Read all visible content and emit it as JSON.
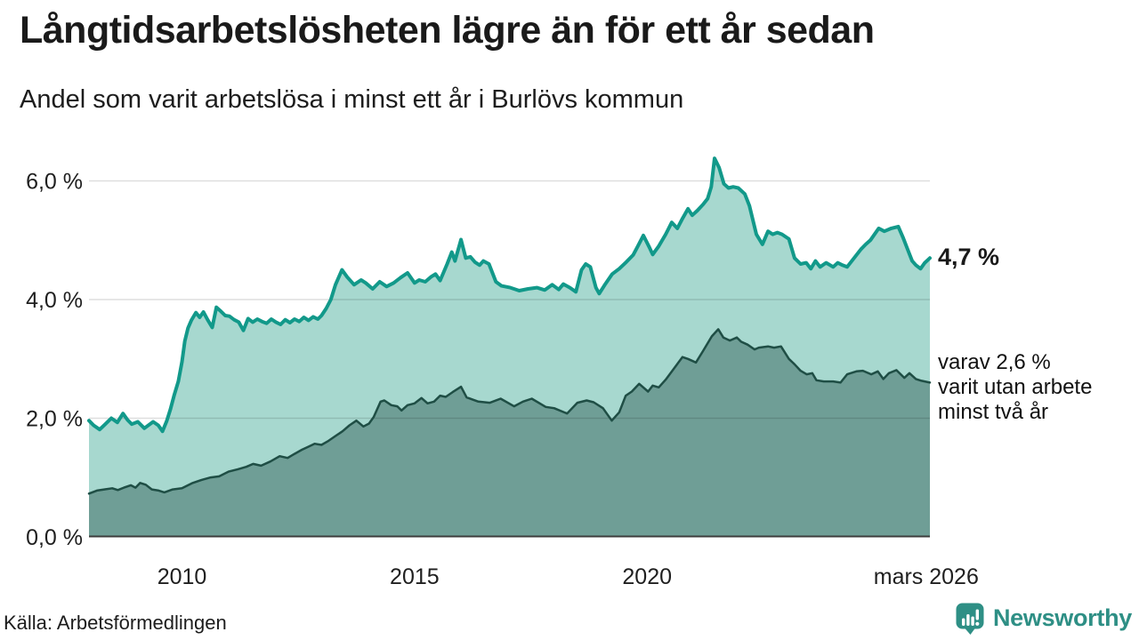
{
  "header": {
    "title": "Långtidsarbetslösheten lägre än för ett år sedan",
    "subtitle": "Andel som varit arbetslösa i minst ett år i Burlövs kommun"
  },
  "chart_data": {
    "type": "area",
    "title": "Långtidsarbetslösheten lägre än för ett år sedan",
    "subtitle": "Andel som varit arbetslösa i minst ett år i Burlövs kommun",
    "x_unit": "year",
    "x_range": [
      2008.0,
      2026.08
    ],
    "ylim": [
      0,
      6.6
    ],
    "grid": true,
    "grid_color": "rgba(0,0,0,0.13)",
    "axis_color": "#3d3d3d",
    "y_ticks": [
      {
        "value": 0,
        "label": "0,0 %"
      },
      {
        "value": 2,
        "label": "2,0 %"
      },
      {
        "value": 4,
        "label": "4,0 %"
      },
      {
        "value": 6,
        "label": "6,0 %"
      }
    ],
    "x_ticks": [
      {
        "year": 2010,
        "label": "2010"
      },
      {
        "year": 2015,
        "label": "2015"
      },
      {
        "year": 2020,
        "label": "2020"
      },
      {
        "year": 2026.0,
        "label": "mars 2026"
      }
    ],
    "series": [
      {
        "name": "Andel som varit arbetslösa i minst ett år",
        "line_color": "#12998A",
        "fill_color": "#A7D8CF",
        "line_width": 4,
        "end_value": "4,7 %",
        "points": [
          [
            2008.0,
            1.96
          ],
          [
            2008.1,
            1.88
          ],
          [
            2008.23,
            1.81
          ],
          [
            2008.35,
            1.9
          ],
          [
            2008.48,
            2.0
          ],
          [
            2008.61,
            1.93
          ],
          [
            2008.73,
            2.08
          ],
          [
            2008.83,
            1.97
          ],
          [
            2008.92,
            1.9
          ],
          [
            2009.05,
            1.94
          ],
          [
            2009.19,
            1.83
          ],
          [
            2009.38,
            1.94
          ],
          [
            2009.49,
            1.88
          ],
          [
            2009.58,
            1.78
          ],
          [
            2009.67,
            1.95
          ],
          [
            2009.75,
            2.15
          ],
          [
            2009.83,
            2.38
          ],
          [
            2009.92,
            2.62
          ],
          [
            2010.0,
            2.95
          ],
          [
            2010.06,
            3.3
          ],
          [
            2010.13,
            3.52
          ],
          [
            2010.2,
            3.65
          ],
          [
            2010.3,
            3.78
          ],
          [
            2010.38,
            3.7
          ],
          [
            2010.46,
            3.79
          ],
          [
            2010.55,
            3.66
          ],
          [
            2010.65,
            3.53
          ],
          [
            2010.74,
            3.87
          ],
          [
            2010.84,
            3.8
          ],
          [
            2010.93,
            3.73
          ],
          [
            2011.02,
            3.72
          ],
          [
            2011.12,
            3.66
          ],
          [
            2011.22,
            3.62
          ],
          [
            2011.32,
            3.48
          ],
          [
            2011.42,
            3.68
          ],
          [
            2011.52,
            3.62
          ],
          [
            2011.62,
            3.67
          ],
          [
            2011.72,
            3.63
          ],
          [
            2011.82,
            3.6
          ],
          [
            2011.92,
            3.67
          ],
          [
            2012.02,
            3.62
          ],
          [
            2012.12,
            3.58
          ],
          [
            2012.22,
            3.66
          ],
          [
            2012.32,
            3.61
          ],
          [
            2012.42,
            3.67
          ],
          [
            2012.52,
            3.63
          ],
          [
            2012.62,
            3.7
          ],
          [
            2012.72,
            3.65
          ],
          [
            2012.82,
            3.71
          ],
          [
            2012.92,
            3.67
          ],
          [
            2013.0,
            3.73
          ],
          [
            2013.1,
            3.85
          ],
          [
            2013.2,
            4.0
          ],
          [
            2013.3,
            4.25
          ],
          [
            2013.44,
            4.5
          ],
          [
            2013.55,
            4.38
          ],
          [
            2013.7,
            4.25
          ],
          [
            2013.85,
            4.33
          ],
          [
            2013.95,
            4.28
          ],
          [
            2014.1,
            4.18
          ],
          [
            2014.25,
            4.3
          ],
          [
            2014.4,
            4.22
          ],
          [
            2014.55,
            4.28
          ],
          [
            2014.7,
            4.37
          ],
          [
            2014.85,
            4.45
          ],
          [
            2015.0,
            4.28
          ],
          [
            2015.1,
            4.33
          ],
          [
            2015.23,
            4.3
          ],
          [
            2015.35,
            4.38
          ],
          [
            2015.45,
            4.43
          ],
          [
            2015.55,
            4.32
          ],
          [
            2015.7,
            4.6
          ],
          [
            2015.8,
            4.8
          ],
          [
            2015.87,
            4.65
          ],
          [
            2016.0,
            5.01
          ],
          [
            2016.1,
            4.7
          ],
          [
            2016.2,
            4.72
          ],
          [
            2016.3,
            4.63
          ],
          [
            2016.4,
            4.58
          ],
          [
            2016.48,
            4.65
          ],
          [
            2016.6,
            4.6
          ],
          [
            2016.75,
            4.3
          ],
          [
            2016.87,
            4.23
          ],
          [
            2017.06,
            4.2
          ],
          [
            2017.25,
            4.15
          ],
          [
            2017.44,
            4.18
          ],
          [
            2017.63,
            4.2
          ],
          [
            2017.8,
            4.16
          ],
          [
            2017.96,
            4.25
          ],
          [
            2018.1,
            4.17
          ],
          [
            2018.2,
            4.26
          ],
          [
            2018.34,
            4.2
          ],
          [
            2018.47,
            4.13
          ],
          [
            2018.59,
            4.5
          ],
          [
            2018.68,
            4.6
          ],
          [
            2018.78,
            4.55
          ],
          [
            2018.9,
            4.2
          ],
          [
            2018.97,
            4.1
          ],
          [
            2019.1,
            4.26
          ],
          [
            2019.25,
            4.43
          ],
          [
            2019.4,
            4.52
          ],
          [
            2019.55,
            4.63
          ],
          [
            2019.7,
            4.75
          ],
          [
            2019.8,
            4.9
          ],
          [
            2019.92,
            5.08
          ],
          [
            2020.05,
            4.88
          ],
          [
            2020.12,
            4.76
          ],
          [
            2020.25,
            4.9
          ],
          [
            2020.4,
            5.1
          ],
          [
            2020.53,
            5.3
          ],
          [
            2020.65,
            5.2
          ],
          [
            2020.75,
            5.35
          ],
          [
            2020.88,
            5.53
          ],
          [
            2020.97,
            5.42
          ],
          [
            2021.08,
            5.5
          ],
          [
            2021.2,
            5.6
          ],
          [
            2021.3,
            5.7
          ],
          [
            2021.38,
            5.9
          ],
          [
            2021.45,
            6.38
          ],
          [
            2021.55,
            6.22
          ],
          [
            2021.65,
            5.95
          ],
          [
            2021.75,
            5.88
          ],
          [
            2021.85,
            5.9
          ],
          [
            2021.96,
            5.88
          ],
          [
            2022.1,
            5.78
          ],
          [
            2022.2,
            5.58
          ],
          [
            2022.35,
            5.1
          ],
          [
            2022.48,
            4.93
          ],
          [
            2022.6,
            5.15
          ],
          [
            2022.7,
            5.1
          ],
          [
            2022.8,
            5.13
          ],
          [
            2022.9,
            5.1
          ],
          [
            2023.05,
            5.02
          ],
          [
            2023.17,
            4.7
          ],
          [
            2023.3,
            4.6
          ],
          [
            2023.42,
            4.62
          ],
          [
            2023.52,
            4.52
          ],
          [
            2023.62,
            4.65
          ],
          [
            2023.72,
            4.55
          ],
          [
            2023.85,
            4.62
          ],
          [
            2024.0,
            4.55
          ],
          [
            2024.1,
            4.62
          ],
          [
            2024.2,
            4.58
          ],
          [
            2024.3,
            4.55
          ],
          [
            2024.45,
            4.7
          ],
          [
            2024.6,
            4.85
          ],
          [
            2024.7,
            4.93
          ],
          [
            2024.8,
            5.0
          ],
          [
            2024.98,
            5.2
          ],
          [
            2025.1,
            5.15
          ],
          [
            2025.25,
            5.2
          ],
          [
            2025.4,
            5.23
          ],
          [
            2025.5,
            5.05
          ],
          [
            2025.6,
            4.85
          ],
          [
            2025.7,
            4.65
          ],
          [
            2025.78,
            4.58
          ],
          [
            2025.88,
            4.52
          ],
          [
            2025.97,
            4.62
          ],
          [
            2026.08,
            4.7
          ]
        ]
      },
      {
        "name": "Andel som varit utan arbete minst två år",
        "line_color": "#1F4E45",
        "fill_color": "#6F9E96",
        "line_width": 2.5,
        "end_value": "2,6 %",
        "points": [
          [
            2008.0,
            0.73
          ],
          [
            2008.17,
            0.78
          ],
          [
            2008.33,
            0.8
          ],
          [
            2008.5,
            0.82
          ],
          [
            2008.62,
            0.79
          ],
          [
            2008.75,
            0.83
          ],
          [
            2008.9,
            0.87
          ],
          [
            2009.0,
            0.83
          ],
          [
            2009.1,
            0.91
          ],
          [
            2009.22,
            0.88
          ],
          [
            2009.35,
            0.8
          ],
          [
            2009.5,
            0.78
          ],
          [
            2009.62,
            0.75
          ],
          [
            2009.8,
            0.8
          ],
          [
            2010.0,
            0.82
          ],
          [
            2010.23,
            0.91
          ],
          [
            2010.42,
            0.96
          ],
          [
            2010.6,
            1.0
          ],
          [
            2010.8,
            1.02
          ],
          [
            2011.0,
            1.1
          ],
          [
            2011.2,
            1.14
          ],
          [
            2011.38,
            1.18
          ],
          [
            2011.53,
            1.23
          ],
          [
            2011.7,
            1.2
          ],
          [
            2011.9,
            1.27
          ],
          [
            2012.1,
            1.36
          ],
          [
            2012.27,
            1.33
          ],
          [
            2012.42,
            1.4
          ],
          [
            2012.58,
            1.47
          ],
          [
            2012.72,
            1.52
          ],
          [
            2012.85,
            1.57
          ],
          [
            2013.0,
            1.55
          ],
          [
            2013.15,
            1.62
          ],
          [
            2013.3,
            1.7
          ],
          [
            2013.45,
            1.78
          ],
          [
            2013.6,
            1.88
          ],
          [
            2013.75,
            1.96
          ],
          [
            2013.9,
            1.86
          ],
          [
            2014.02,
            1.91
          ],
          [
            2014.12,
            2.02
          ],
          [
            2014.27,
            2.28
          ],
          [
            2014.35,
            2.3
          ],
          [
            2014.5,
            2.22
          ],
          [
            2014.63,
            2.2
          ],
          [
            2014.72,
            2.13
          ],
          [
            2014.85,
            2.22
          ],
          [
            2015.0,
            2.25
          ],
          [
            2015.15,
            2.34
          ],
          [
            2015.28,
            2.25
          ],
          [
            2015.42,
            2.28
          ],
          [
            2015.55,
            2.38
          ],
          [
            2015.67,
            2.36
          ],
          [
            2015.82,
            2.44
          ],
          [
            2016.0,
            2.53
          ],
          [
            2016.12,
            2.35
          ],
          [
            2016.37,
            2.28
          ],
          [
            2016.62,
            2.26
          ],
          [
            2016.85,
            2.33
          ],
          [
            2017.14,
            2.2
          ],
          [
            2017.33,
            2.28
          ],
          [
            2017.52,
            2.33
          ],
          [
            2017.82,
            2.19
          ],
          [
            2018.0,
            2.17
          ],
          [
            2018.28,
            2.08
          ],
          [
            2018.5,
            2.26
          ],
          [
            2018.7,
            2.3
          ],
          [
            2018.85,
            2.27
          ],
          [
            2019.05,
            2.17
          ],
          [
            2019.24,
            1.96
          ],
          [
            2019.4,
            2.1
          ],
          [
            2019.54,
            2.38
          ],
          [
            2019.67,
            2.45
          ],
          [
            2019.83,
            2.58
          ],
          [
            2020.02,
            2.45
          ],
          [
            2020.12,
            2.55
          ],
          [
            2020.25,
            2.52
          ],
          [
            2020.4,
            2.65
          ],
          [
            2020.57,
            2.83
          ],
          [
            2020.76,
            3.03
          ],
          [
            2020.88,
            3.0
          ],
          [
            2021.05,
            2.94
          ],
          [
            2021.2,
            3.13
          ],
          [
            2021.39,
            3.38
          ],
          [
            2021.53,
            3.5
          ],
          [
            2021.64,
            3.36
          ],
          [
            2021.78,
            3.31
          ],
          [
            2021.93,
            3.36
          ],
          [
            2022.02,
            3.29
          ],
          [
            2022.16,
            3.24
          ],
          [
            2022.31,
            3.16
          ],
          [
            2022.4,
            3.19
          ],
          [
            2022.6,
            3.21
          ],
          [
            2022.73,
            3.19
          ],
          [
            2022.88,
            3.21
          ],
          [
            2023.05,
            3.0
          ],
          [
            2023.17,
            2.91
          ],
          [
            2023.3,
            2.8
          ],
          [
            2023.43,
            2.74
          ],
          [
            2023.55,
            2.76
          ],
          [
            2023.64,
            2.64
          ],
          [
            2023.8,
            2.62
          ],
          [
            2024.0,
            2.62
          ],
          [
            2024.16,
            2.6
          ],
          [
            2024.3,
            2.74
          ],
          [
            2024.5,
            2.79
          ],
          [
            2024.64,
            2.8
          ],
          [
            2024.82,
            2.74
          ],
          [
            2024.96,
            2.79
          ],
          [
            2025.08,
            2.66
          ],
          [
            2025.2,
            2.76
          ],
          [
            2025.36,
            2.81
          ],
          [
            2025.53,
            2.68
          ],
          [
            2025.64,
            2.76
          ],
          [
            2025.78,
            2.66
          ],
          [
            2025.9,
            2.63
          ],
          [
            2026.08,
            2.6
          ]
        ]
      }
    ],
    "annotations": {
      "end_value_label": "4,7 %",
      "secondary_lines": [
        "varav 2,6 %",
        "varit utan arbete",
        "minst två år"
      ]
    }
  },
  "footer": {
    "source": "Källa: Arbetsförmedlingen",
    "brand": "Newsworthy",
    "brand_color": "#2E8F85"
  }
}
